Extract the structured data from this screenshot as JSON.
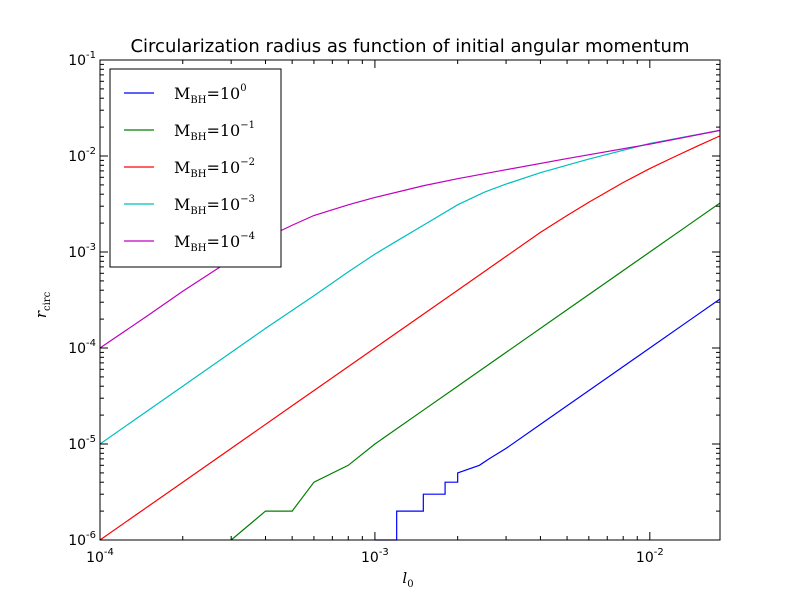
{
  "chart_data": {
    "type": "line",
    "title": "Circularization radius as function of initial angular momentum",
    "xlabel": {
      "main": "l",
      "sub": "0"
    },
    "ylabel": {
      "main": "r",
      "sub": "circ"
    },
    "x_scale": "log",
    "y_scale": "log",
    "xlim": [
      0.0001,
      0.018
    ],
    "ylim": [
      1e-06,
      0.1
    ],
    "x_ticks": [
      {
        "base": "10",
        "exp": "-4"
      },
      {
        "base": "10",
        "exp": "-3"
      },
      {
        "base": "10",
        "exp": "-2"
      }
    ],
    "y_ticks": [
      {
        "base": "10",
        "exp": "-6"
      },
      {
        "base": "10",
        "exp": "-5"
      },
      {
        "base": "10",
        "exp": "-4"
      },
      {
        "base": "10",
        "exp": "-3"
      },
      {
        "base": "10",
        "exp": "-2"
      },
      {
        "base": "10",
        "exp": "-1"
      }
    ],
    "legend_position": "top-left",
    "series": [
      {
        "name": "M_BH=10^0",
        "label": {
          "m": "M",
          "sub": "BH",
          "eq": "=10",
          "sup": "0"
        },
        "color": "#0000ff",
        "points": [
          [
            0.001,
            1e-06
          ],
          [
            0.0012,
            1e-06
          ],
          [
            0.0012,
            2e-06
          ],
          [
            0.0015,
            2e-06
          ],
          [
            0.0015,
            3e-06
          ],
          [
            0.0018,
            3e-06
          ],
          [
            0.0018,
            4e-06
          ],
          [
            0.002,
            4e-06
          ],
          [
            0.002,
            5e-06
          ],
          [
            0.0024,
            6e-06
          ],
          [
            0.0026,
            7e-06
          ],
          [
            0.003,
            9e-06
          ],
          [
            0.004,
            1.6e-05
          ],
          [
            0.005,
            2.5e-05
          ],
          [
            0.007,
            4.9e-05
          ],
          [
            0.01,
            0.0001
          ],
          [
            0.014,
            0.000196
          ],
          [
            0.018,
            0.000324
          ]
        ]
      },
      {
        "name": "M_BH=10^-1",
        "label": {
          "m": "M",
          "sub": "BH",
          "eq": "=10",
          "sup": "−1"
        },
        "color": "#008000",
        "points": [
          [
            0.0003,
            1e-06
          ],
          [
            0.0004,
            2e-06
          ],
          [
            0.0005,
            2e-06
          ],
          [
            0.0006,
            4e-06
          ],
          [
            0.0008,
            6e-06
          ],
          [
            0.001,
            1e-05
          ],
          [
            0.0015,
            2.25e-05
          ],
          [
            0.002,
            4e-05
          ],
          [
            0.003,
            9e-05
          ],
          [
            0.005,
            0.00025
          ],
          [
            0.007,
            0.00049
          ],
          [
            0.01,
            0.001
          ],
          [
            0.014,
            0.00196
          ],
          [
            0.018,
            0.00324
          ]
        ]
      },
      {
        "name": "M_BH=10^-2",
        "label": {
          "m": "M",
          "sub": "BH",
          "eq": "=10",
          "sup": "−2"
        },
        "color": "#ff0000",
        "points": [
          [
            0.0001,
            1e-06
          ],
          [
            0.0002,
            4e-06
          ],
          [
            0.0005,
            2.5e-05
          ],
          [
            0.001,
            0.0001
          ],
          [
            0.002,
            0.0004
          ],
          [
            0.003,
            0.0009
          ],
          [
            0.004,
            0.0016
          ],
          [
            0.005,
            0.0024
          ],
          [
            0.006,
            0.0033
          ],
          [
            0.008,
            0.0053
          ],
          [
            0.01,
            0.0074
          ],
          [
            0.012,
            0.0095
          ],
          [
            0.015,
            0.0128
          ],
          [
            0.018,
            0.0162
          ]
        ]
      },
      {
        "name": "M_BH=10^-3",
        "label": {
          "m": "M",
          "sub": "BH",
          "eq": "=10",
          "sup": "−3"
        },
        "color": "#00bfbf",
        "points": [
          [
            0.0001,
            1e-05
          ],
          [
            0.0002,
            4e-05
          ],
          [
            0.0004,
            0.00016
          ],
          [
            0.0006,
            0.00035
          ],
          [
            0.0008,
            0.00062
          ],
          [
            0.001,
            0.00095
          ],
          [
            0.0012,
            0.0013
          ],
          [
            0.0015,
            0.0019
          ],
          [
            0.002,
            0.0031
          ],
          [
            0.0025,
            0.0042
          ],
          [
            0.003,
            0.0051
          ],
          [
            0.004,
            0.0067
          ],
          [
            0.006,
            0.0093
          ],
          [
            0.01,
            0.0135
          ],
          [
            0.018,
            0.0185
          ]
        ]
      },
      {
        "name": "M_BH=10^-4",
        "label": {
          "m": "M",
          "sub": "BH",
          "eq": "=10",
          "sup": "−4"
        },
        "color": "#bf00bf",
        "points": [
          [
            0.0001,
            0.0001
          ],
          [
            0.00015,
            0.00022
          ],
          [
            0.0002,
            0.00039
          ],
          [
            0.0003,
            0.00083
          ],
          [
            0.0004,
            0.0014
          ],
          [
            0.0005,
            0.0019
          ],
          [
            0.0006,
            0.0024
          ],
          [
            0.0008,
            0.0031
          ],
          [
            0.001,
            0.0037
          ],
          [
            0.0015,
            0.0049
          ],
          [
            0.002,
            0.0058
          ],
          [
            0.003,
            0.0072
          ],
          [
            0.005,
            0.0094
          ],
          [
            0.01,
            0.0133
          ],
          [
            0.018,
            0.0185
          ]
        ]
      }
    ]
  }
}
